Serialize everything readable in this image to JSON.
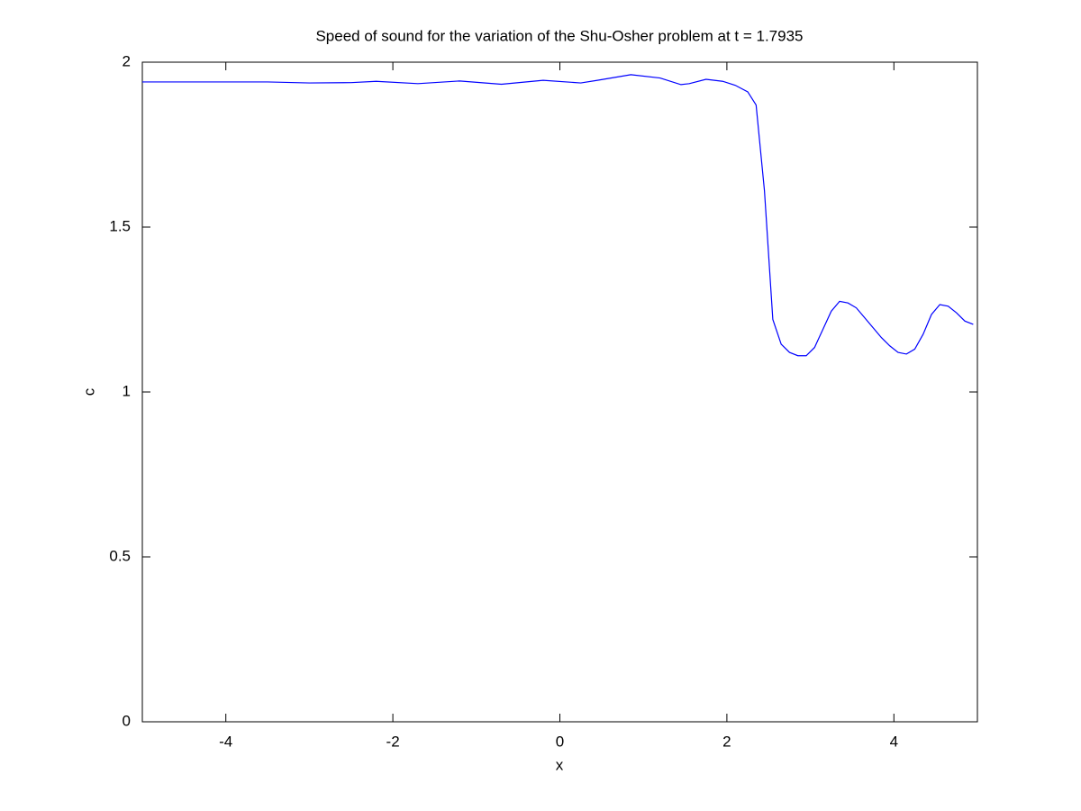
{
  "chart_data": {
    "type": "line",
    "title": "Speed of sound for the variation of the Shu-Osher problem at t = 1.7935",
    "x_label": "x",
    "y_label": "c",
    "x": [
      -5,
      -3.5,
      -3,
      -2.5,
      -2.2,
      -1.7,
      -1.2,
      -0.7,
      -0.2,
      0.25,
      0.45,
      0.85,
      1.2,
      1.45,
      1.55,
      1.75,
      1.95,
      2.1,
      2.25,
      2.35,
      2.45,
      2.55,
      2.65,
      2.75,
      2.85,
      2.95,
      3.05,
      3.15,
      3.25,
      3.35,
      3.45,
      3.55,
      3.65,
      3.75,
      3.85,
      3.95,
      4.05,
      4.15,
      4.25,
      4.35,
      4.45,
      4.55,
      4.65,
      4.75,
      4.85,
      4.95
    ],
    "values": [
      1.94,
      1.94,
      1.937,
      1.938,
      1.942,
      1.935,
      1.943,
      1.933,
      1.945,
      1.937,
      1.945,
      1.962,
      1.952,
      1.932,
      1.935,
      1.948,
      1.942,
      1.93,
      1.91,
      1.87,
      1.61,
      1.22,
      1.145,
      1.12,
      1.11,
      1.11,
      1.135,
      1.19,
      1.245,
      1.275,
      1.27,
      1.255,
      1.225,
      1.195,
      1.165,
      1.14,
      1.12,
      1.115,
      1.13,
      1.175,
      1.235,
      1.265,
      1.26,
      1.24,
      1.215,
      1.205
    ],
    "color": "#0000ff",
    "xlim": [
      -5,
      5
    ],
    "ylim": [
      0,
      2
    ],
    "xticks": [
      -4,
      -2,
      0,
      2,
      4
    ],
    "yticks": [
      0,
      0.5,
      1,
      1.5,
      2
    ]
  }
}
